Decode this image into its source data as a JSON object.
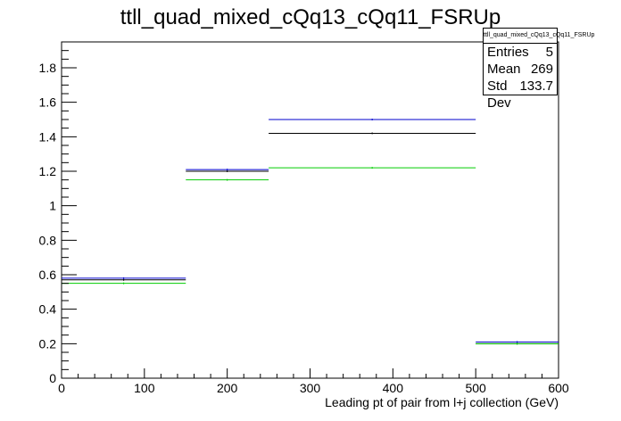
{
  "chart_data": {
    "type": "step",
    "title": "ttll_quad_mixed_cQq13_cQq11_FSRUp",
    "xlabel": "Leading pt of pair from l+j collection (GeV)",
    "ylabel": "",
    "xlim": [
      0,
      600
    ],
    "ylim": [
      0,
      1.95
    ],
    "x_ticks": [
      "0",
      "100",
      "200",
      "300",
      "400",
      "500",
      "600"
    ],
    "y_ticks": [
      "0",
      "0.2",
      "0.4",
      "0.6",
      "0.8",
      "1",
      "1.2",
      "1.4",
      "1.6",
      "1.8"
    ],
    "bin_edges": [
      0,
      150,
      250,
      500,
      600
    ],
    "series": [
      {
        "color": "#000000",
        "values": [
          0.57,
          1.2,
          1.42,
          0.2
        ]
      },
      {
        "color": "#0000cc",
        "values": [
          0.58,
          1.21,
          1.5,
          0.21
        ]
      },
      {
        "color": "#00cc00",
        "values": [
          0.55,
          1.15,
          1.22,
          0.2
        ]
      }
    ],
    "grid": false,
    "stats_box": {
      "name": "ttll_quad_mixed_cQq13_cQq11_FSRUp",
      "rows": [
        {
          "label": "Entries",
          "value": "5"
        },
        {
          "label": "Mean",
          "value": "269"
        },
        {
          "label": "Std Dev",
          "value": "133.7"
        }
      ]
    }
  }
}
